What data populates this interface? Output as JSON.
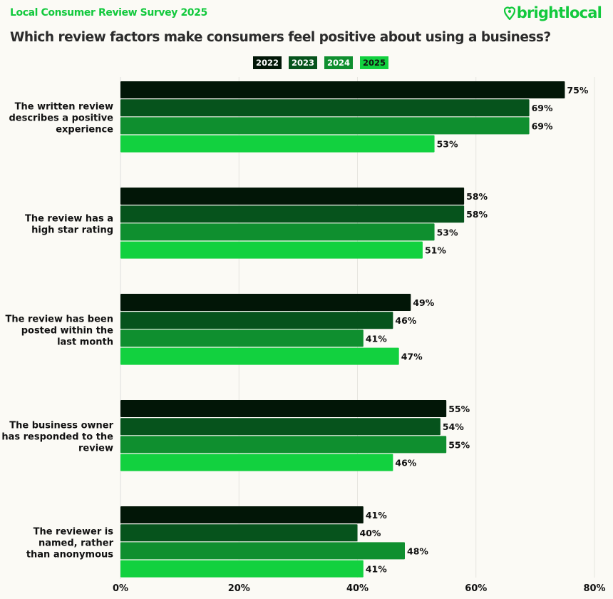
{
  "header": {
    "survey_title": "Local Consumer Review Survey 2025",
    "logo_text": "brightlocal",
    "brand_color": "#12c93d"
  },
  "chart_data": {
    "type": "bar",
    "orientation": "horizontal",
    "title": "Which review factors make consumers feel positive about using a business?",
    "categories": [
      [
        "The written review",
        "describes a positive",
        "experience"
      ],
      [
        "The review has a",
        "high star rating"
      ],
      [
        "The review has been",
        "posted within the",
        "last month"
      ],
      [
        "The business owner",
        "has responded to the",
        "review"
      ],
      [
        "The reviewer is",
        "named, rather",
        "than anonymous"
      ]
    ],
    "series": [
      {
        "name": "2022",
        "color": "#021607",
        "values": [
          75,
          58,
          49,
          55,
          41
        ]
      },
      {
        "name": "2023",
        "color": "#06531c",
        "values": [
          69,
          58,
          46,
          54,
          40
        ]
      },
      {
        "name": "2024",
        "color": "#0f8f2f",
        "values": [
          69,
          53,
          41,
          55,
          48
        ]
      },
      {
        "name": "2025",
        "color": "#12d13f",
        "values": [
          53,
          51,
          47,
          46,
          41
        ]
      }
    ],
    "xlim": [
      0,
      80
    ],
    "xticks": [
      "0%",
      "20%",
      "40%",
      "60%",
      "80%"
    ],
    "value_suffix": "%",
    "grid": true,
    "legend_position": "top"
  }
}
